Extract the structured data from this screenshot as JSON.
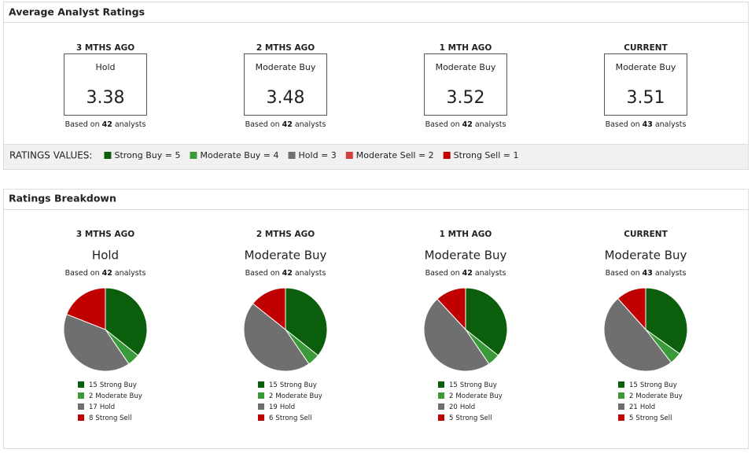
{
  "ratings": {
    "title": "Average Analyst Ratings",
    "based_on": "Based on",
    "analysts_word": "analysts",
    "periods": [
      {
        "label": "3 MTHS AGO",
        "rating": "Hold",
        "color": "#555555",
        "score": 3.38,
        "analysts": 42
      },
      {
        "label": "2 MTHS AGO",
        "rating": "Moderate Buy",
        "color": "#2e8b2e",
        "score": 3.48,
        "analysts": 42
      },
      {
        "label": "1 MTH AGO",
        "rating": "Moderate Buy",
        "color": "#2e8b2e",
        "score": 3.52,
        "analysts": 42
      },
      {
        "label": "CURRENT",
        "rating": "Moderate Buy",
        "color": "#2e8b2e",
        "score": 3.51,
        "analysts": 43
      }
    ],
    "values_label": "RATINGS VALUES:",
    "legend": [
      {
        "text": "Strong Buy = 5",
        "color": "#0b5e0b"
      },
      {
        "text": "Moderate Buy = 4",
        "color": "#3a9a3a"
      },
      {
        "text": "Hold = 3",
        "color": "#6f6f6f"
      },
      {
        "text": "Moderate Sell = 2",
        "color": "#d04040"
      },
      {
        "text": "Strong Sell = 1",
        "color": "#c00000"
      }
    ]
  },
  "breakdown": {
    "title": "Ratings Breakdown"
  },
  "chart_data": [
    {
      "type": "pie",
      "title": "3 MTHS AGO",
      "subtitle": "Hold",
      "subtitle_color": "#555555",
      "analysts": 42,
      "categories": [
        "Strong Buy",
        "Moderate Buy",
        "Hold",
        "Strong Sell"
      ],
      "values": [
        15,
        2,
        17,
        8
      ],
      "colors": [
        "#0b5e0b",
        "#3a9a3a",
        "#6f6f6f",
        "#c00000"
      ]
    },
    {
      "type": "pie",
      "title": "2 MTHS AGO",
      "subtitle": "Moderate Buy",
      "subtitle_color": "#2e8b2e",
      "analysts": 42,
      "categories": [
        "Strong Buy",
        "Moderate Buy",
        "Hold",
        "Strong Sell"
      ],
      "values": [
        15,
        2,
        19,
        6
      ],
      "colors": [
        "#0b5e0b",
        "#3a9a3a",
        "#6f6f6f",
        "#c00000"
      ]
    },
    {
      "type": "pie",
      "title": "1 MTH AGO",
      "subtitle": "Moderate Buy",
      "subtitle_color": "#2e8b2e",
      "analysts": 42,
      "categories": [
        "Strong Buy",
        "Moderate Buy",
        "Hold",
        "Strong Sell"
      ],
      "values": [
        15,
        2,
        20,
        5
      ],
      "colors": [
        "#0b5e0b",
        "#3a9a3a",
        "#6f6f6f",
        "#c00000"
      ]
    },
    {
      "type": "pie",
      "title": "CURRENT",
      "subtitle": "Moderate Buy",
      "subtitle_color": "#2e8b2e",
      "analysts": 43,
      "categories": [
        "Strong Buy",
        "Moderate Buy",
        "Hold",
        "Strong Sell"
      ],
      "values": [
        15,
        2,
        21,
        5
      ],
      "colors": [
        "#0b5e0b",
        "#3a9a3a",
        "#6f6f6f",
        "#c00000"
      ]
    }
  ]
}
